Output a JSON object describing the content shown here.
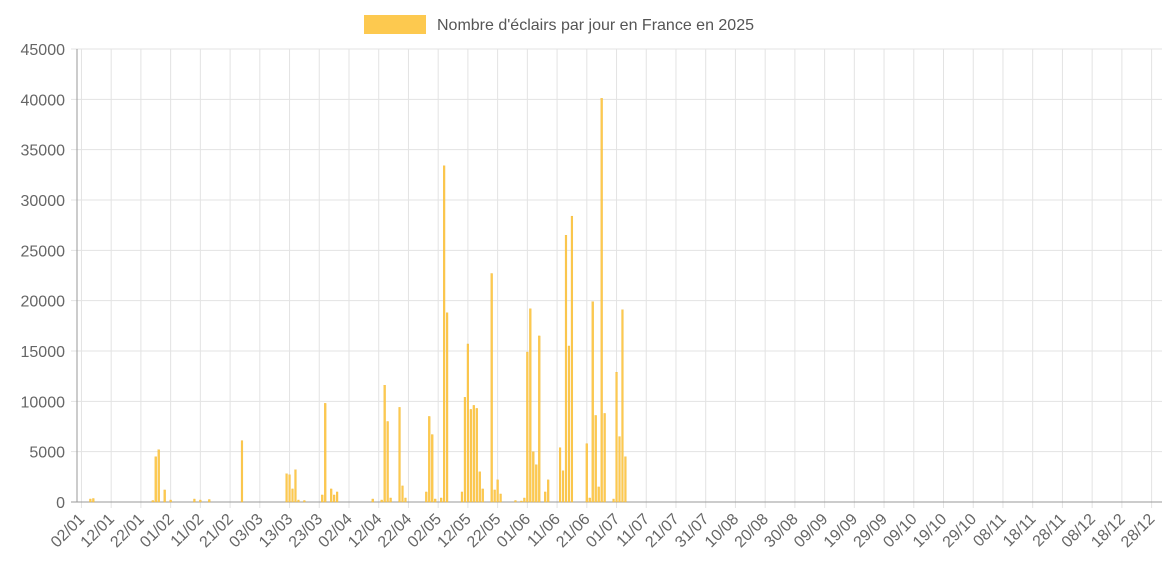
{
  "chart_data": {
    "type": "bar",
    "legend": {
      "label": "Nombre d'éclairs par jour en France en 2025",
      "placement": "top-center"
    },
    "colors": {
      "bar": "#fdc94f",
      "bar_stroke": "#f0b429",
      "grid": "#e3e3e3",
      "axis": "#999999"
    },
    "ylim": [
      0,
      45000
    ],
    "yticks": [
      0,
      5000,
      10000,
      15000,
      20000,
      25000,
      30000,
      35000,
      40000,
      45000
    ],
    "grid": true,
    "xticks": [
      "02/01",
      "12/01",
      "22/01",
      "01/02",
      "11/02",
      "21/02",
      "03/03",
      "13/03",
      "23/03",
      "02/04",
      "12/04",
      "22/04",
      "02/05",
      "12/05",
      "22/05",
      "01/06",
      "11/06",
      "21/06",
      "01/07",
      "11/07",
      "21/07",
      "31/07",
      "10/08",
      "20/08",
      "30/08",
      "09/09",
      "19/09",
      "29/09",
      "09/10",
      "19/10",
      "29/10",
      "08/11",
      "18/11",
      "28/11",
      "08/12",
      "18/12",
      "28/12"
    ],
    "days": 365,
    "series": [
      {
        "name": "Nombre d'éclairs par jour en France en 2025",
        "points": [
          {
            "date": "05/01",
            "value": 300
          },
          {
            "date": "06/01",
            "value": 350
          },
          {
            "date": "26/01",
            "value": 150
          },
          {
            "date": "27/01",
            "value": 4500
          },
          {
            "date": "28/01",
            "value": 5200
          },
          {
            "date": "30/01",
            "value": 1200
          },
          {
            "date": "01/02",
            "value": 200
          },
          {
            "date": "09/02",
            "value": 300
          },
          {
            "date": "11/02",
            "value": 200
          },
          {
            "date": "14/02",
            "value": 250
          },
          {
            "date": "25/02",
            "value": 6100
          },
          {
            "date": "12/03",
            "value": 2800
          },
          {
            "date": "13/03",
            "value": 2700
          },
          {
            "date": "14/03",
            "value": 1300
          },
          {
            "date": "15/03",
            "value": 3200
          },
          {
            "date": "16/03",
            "value": 200
          },
          {
            "date": "18/03",
            "value": 150
          },
          {
            "date": "24/03",
            "value": 700
          },
          {
            "date": "25/03",
            "value": 9800
          },
          {
            "date": "27/03",
            "value": 1300
          },
          {
            "date": "28/03",
            "value": 700
          },
          {
            "date": "29/03",
            "value": 1000
          },
          {
            "date": "10/04",
            "value": 300
          },
          {
            "date": "13/04",
            "value": 200
          },
          {
            "date": "14/04",
            "value": 11600
          },
          {
            "date": "15/04",
            "value": 8000
          },
          {
            "date": "16/04",
            "value": 400
          },
          {
            "date": "19/04",
            "value": 9400
          },
          {
            "date": "20/04",
            "value": 1600
          },
          {
            "date": "21/04",
            "value": 400
          },
          {
            "date": "28/04",
            "value": 1000
          },
          {
            "date": "29/04",
            "value": 8500
          },
          {
            "date": "30/04",
            "value": 6700
          },
          {
            "date": "01/05",
            "value": 300
          },
          {
            "date": "03/05",
            "value": 400
          },
          {
            "date": "04/05",
            "value": 33400
          },
          {
            "date": "05/05",
            "value": 18800
          },
          {
            "date": "10/05",
            "value": 1000
          },
          {
            "date": "11/05",
            "value": 10400
          },
          {
            "date": "12/05",
            "value": 15700
          },
          {
            "date": "13/05",
            "value": 9200
          },
          {
            "date": "14/05",
            "value": 9600
          },
          {
            "date": "15/05",
            "value": 9300
          },
          {
            "date": "16/05",
            "value": 3000
          },
          {
            "date": "17/05",
            "value": 1300
          },
          {
            "date": "20/05",
            "value": 22700
          },
          {
            "date": "21/05",
            "value": 1200
          },
          {
            "date": "22/05",
            "value": 2200
          },
          {
            "date": "23/05",
            "value": 800
          },
          {
            "date": "28/05",
            "value": 150
          },
          {
            "date": "30/05",
            "value": 100
          },
          {
            "date": "31/05",
            "value": 400
          },
          {
            "date": "01/06",
            "value": 14900
          },
          {
            "date": "02/06",
            "value": 19200
          },
          {
            "date": "03/06",
            "value": 5000
          },
          {
            "date": "04/06",
            "value": 3700
          },
          {
            "date": "05/06",
            "value": 16500
          },
          {
            "date": "07/06",
            "value": 1000
          },
          {
            "date": "08/06",
            "value": 2200
          },
          {
            "date": "12/06",
            "value": 5400
          },
          {
            "date": "13/06",
            "value": 3100
          },
          {
            "date": "14/06",
            "value": 26500
          },
          {
            "date": "15/06",
            "value": 15500
          },
          {
            "date": "16/06",
            "value": 28400
          },
          {
            "date": "21/06",
            "value": 5800
          },
          {
            "date": "22/06",
            "value": 400
          },
          {
            "date": "23/06",
            "value": 19900
          },
          {
            "date": "24/06",
            "value": 8600
          },
          {
            "date": "25/06",
            "value": 1500
          },
          {
            "date": "26/06",
            "value": 40100
          },
          {
            "date": "27/06",
            "value": 8800
          },
          {
            "date": "30/06",
            "value": 300
          },
          {
            "date": "01/07",
            "value": 12900
          },
          {
            "date": "02/07",
            "value": 6500
          },
          {
            "date": "03/07",
            "value": 19100
          },
          {
            "date": "04/07",
            "value": 4500
          }
        ]
      }
    ]
  }
}
